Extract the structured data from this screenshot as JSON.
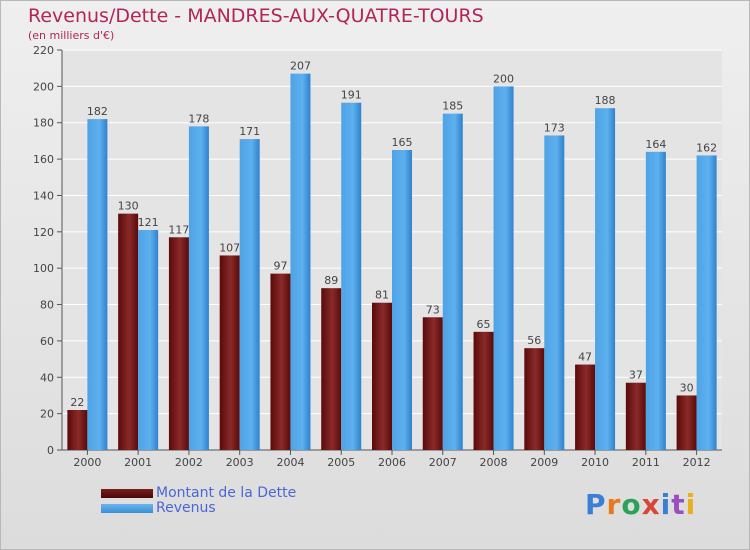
{
  "title": "Revenus/Dette - MANDRES-AUX-QUATRE-TOURS",
  "subtitle": "(en milliers d'€)",
  "logo": {
    "letters": [
      "P",
      "r",
      "o",
      "x",
      "i",
      "t",
      "i"
    ],
    "colors": [
      "#3a7fd4",
      "#e87a1c",
      "#2aa35a",
      "#d8463a",
      "#3a7fd4",
      "#9a4fc0",
      "#e8b01c"
    ]
  },
  "chart_data": {
    "type": "bar",
    "categories": [
      "2000",
      "2001",
      "2002",
      "2003",
      "2004",
      "2005",
      "2006",
      "2007",
      "2008",
      "2009",
      "2010",
      "2011",
      "2012"
    ],
    "series": [
      {
        "name": "Montant de la Dette",
        "color": "#7a1c1c",
        "values": [
          22,
          130,
          117,
          107,
          97,
          89,
          81,
          73,
          65,
          56,
          47,
          37,
          30
        ]
      },
      {
        "name": "Revenus",
        "color": "#4ea3e6",
        "values": [
          182,
          121,
          178,
          171,
          207,
          191,
          165,
          185,
          200,
          173,
          188,
          164,
          162
        ]
      }
    ],
    "ylim": [
      0,
      220
    ],
    "yticks": [
      0,
      20,
      40,
      60,
      80,
      100,
      120,
      140,
      160,
      180,
      200,
      220
    ],
    "grid": true,
    "legend_position": "bottom-left"
  }
}
